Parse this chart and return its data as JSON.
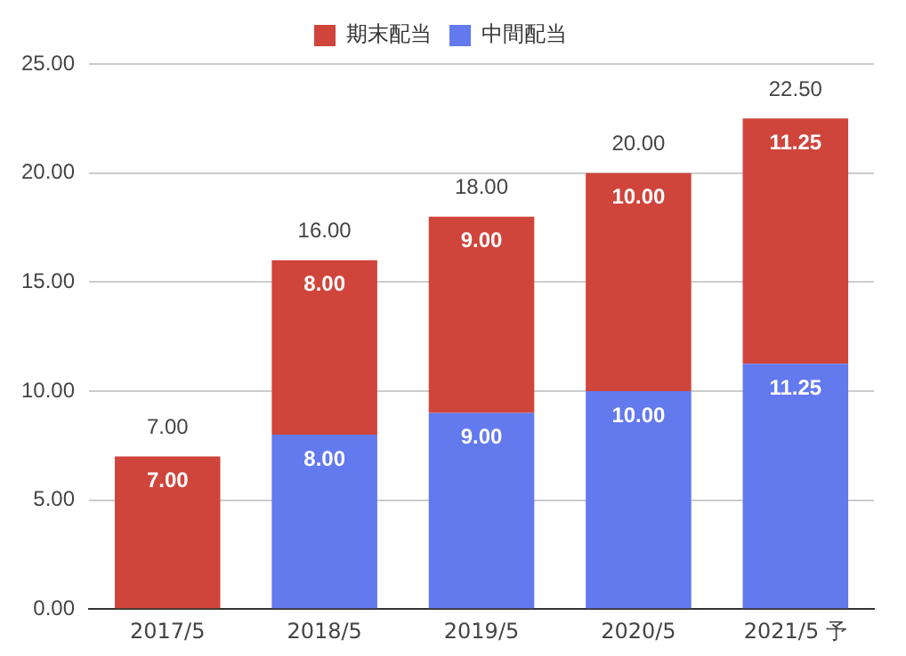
{
  "chart_data": {
    "type": "bar",
    "stacked": true,
    "categories": [
      "2017/5",
      "2018/5",
      "2019/5",
      "2020/5",
      "2021/5 予"
    ],
    "series": [
      {
        "name": "中間配当",
        "color": "#6379ee",
        "values": [
          null,
          8,
          9,
          10,
          11.25
        ],
        "value_labels": [
          null,
          "8.00",
          "9.00",
          "10.00",
          "11.25"
        ]
      },
      {
        "name": "期末配当",
        "color": "#cf453b",
        "values": [
          7,
          8,
          9,
          10,
          11.25
        ],
        "value_labels": [
          "7.00",
          "8.00",
          "9.00",
          "10.00",
          "11.25"
        ]
      }
    ],
    "totals": [
      "7.00",
      "16.00",
      "18.00",
      "20.00",
      "22.50"
    ],
    "ylim": [
      0,
      25
    ],
    "yticks": [
      {
        "value": 0,
        "label": "0.00"
      },
      {
        "value": 5,
        "label": "5.00"
      },
      {
        "value": 10,
        "label": "10.00"
      },
      {
        "value": 15,
        "label": "15.00"
      },
      {
        "value": 20,
        "label": "20.00"
      },
      {
        "value": 25,
        "label": "25.00"
      }
    ],
    "grid": "y",
    "legend": "top"
  }
}
